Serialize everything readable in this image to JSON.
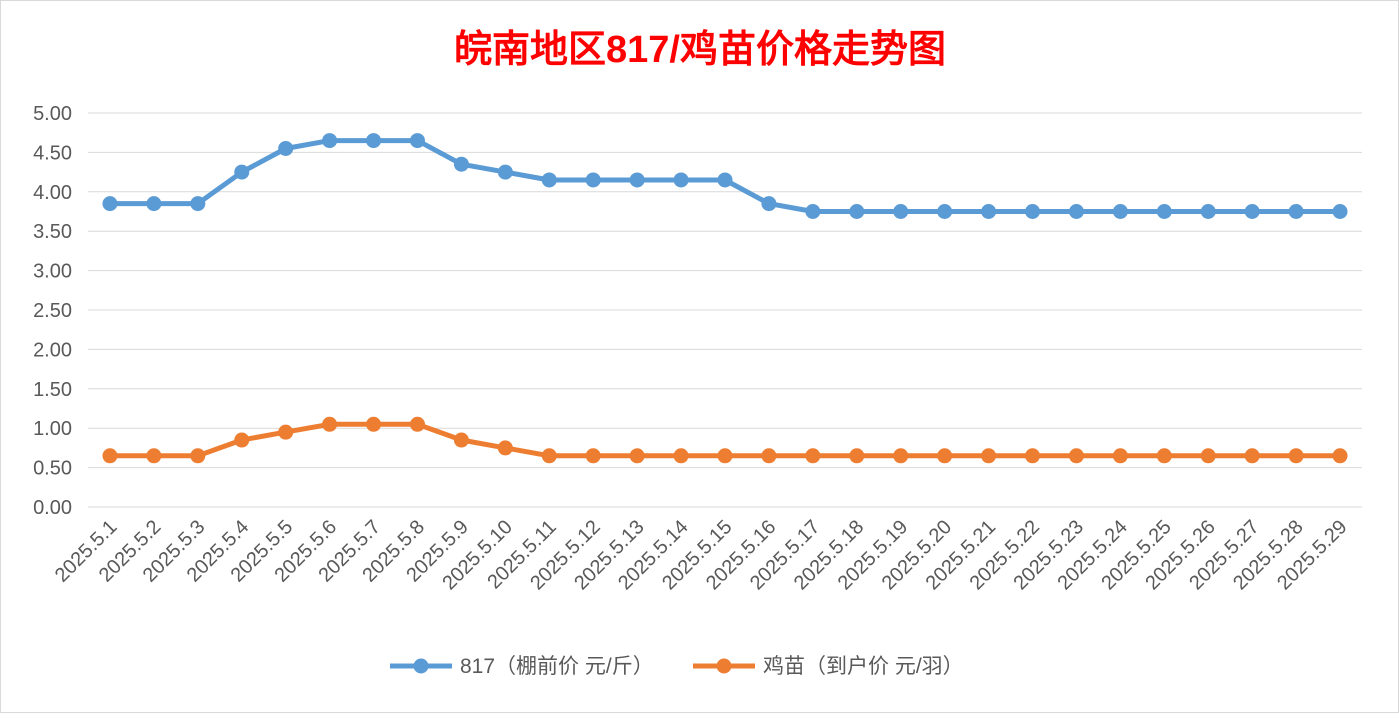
{
  "chart_data": {
    "type": "line",
    "title": "皖南地区817/鸡苗价格走势图",
    "title_color": "#FF0000",
    "x": [
      "2025.5.1",
      "2025.5.2",
      "2025.5.3",
      "2025.5.4",
      "2025.5.5",
      "2025.5.6",
      "2025.5.7",
      "2025.5.8",
      "2025.5.9",
      "2025.5.10",
      "2025.5.11",
      "2025.5.12",
      "2025.5.13",
      "2025.5.14",
      "2025.5.15",
      "2025.5.16",
      "2025.5.17",
      "2025.5.18",
      "2025.5.19",
      "2025.5.20",
      "2025.5.21",
      "2025.5.22",
      "2025.5.23",
      "2025.5.24",
      "2025.5.25",
      "2025.5.26",
      "2025.5.27",
      "2025.5.28",
      "2025.5.29"
    ],
    "series": [
      {
        "name": "817（棚前价 元/斤）",
        "color": "#5B9BD5",
        "values": [
          3.85,
          3.85,
          3.85,
          4.25,
          4.55,
          4.65,
          4.65,
          4.65,
          4.35,
          4.25,
          4.15,
          4.15,
          4.15,
          4.15,
          4.15,
          3.85,
          3.75,
          3.75,
          3.75,
          3.75,
          3.75,
          3.75,
          3.75,
          3.75,
          3.75,
          3.75,
          3.75,
          3.75,
          3.75
        ]
      },
      {
        "name": "鸡苗（到户价 元/羽）",
        "color": "#ED7D31",
        "values": [
          0.65,
          0.65,
          0.65,
          0.85,
          0.95,
          1.05,
          1.05,
          1.05,
          0.85,
          0.75,
          0.65,
          0.65,
          0.65,
          0.65,
          0.65,
          0.65,
          0.65,
          0.65,
          0.65,
          0.65,
          0.65,
          0.65,
          0.65,
          0.65,
          0.65,
          0.65,
          0.65,
          0.65,
          0.65
        ]
      }
    ],
    "ylim": [
      0,
      5
    ],
    "yticks": [
      "0.00",
      "0.50",
      "1.00",
      "1.50",
      "2.00",
      "2.50",
      "3.00",
      "3.50",
      "4.00",
      "4.50",
      "5.00"
    ],
    "grid": true,
    "legend_position": "bottom"
  }
}
